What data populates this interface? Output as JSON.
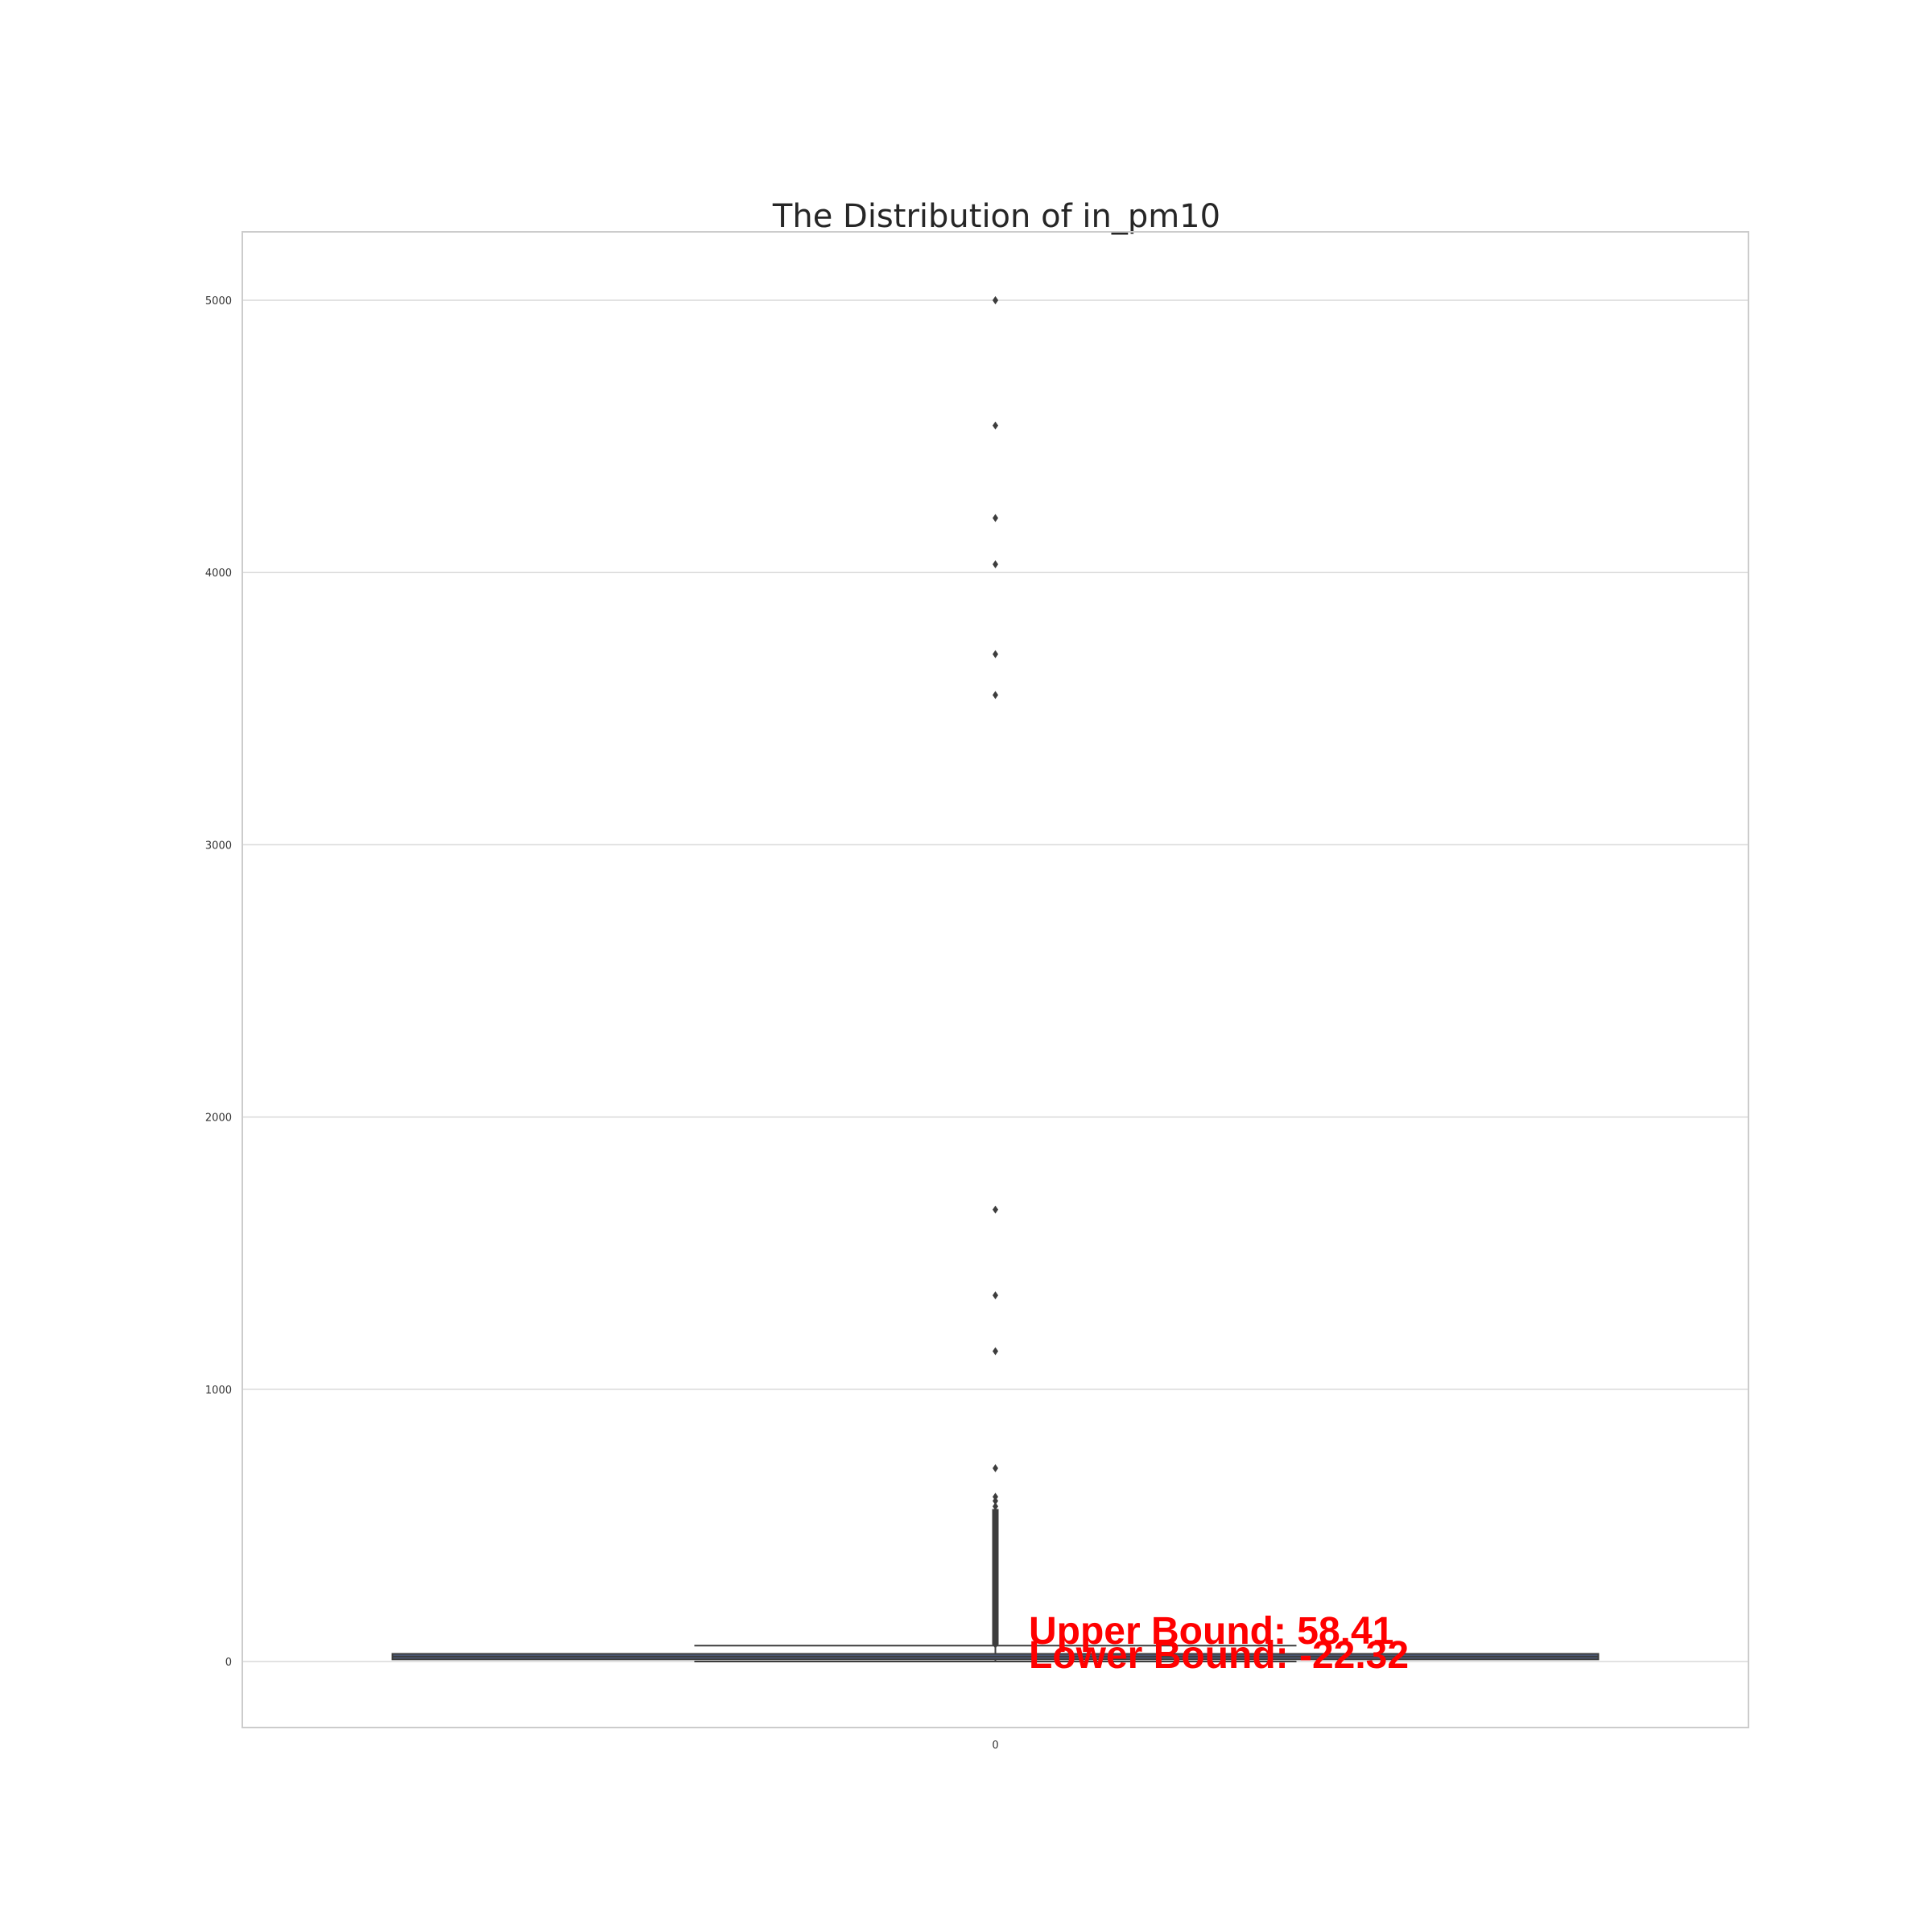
{
  "chart_data": {
    "type": "box",
    "title": "The Distribution of in_pm10",
    "xlabel": "",
    "ylabel": "",
    "categories": [
      "0"
    ],
    "ylim": [
      -250,
      5250
    ],
    "yticks": [
      0,
      1000,
      2000,
      3000,
      4000,
      5000
    ],
    "grid": "horizontal",
    "box": {
      "q1": 7.9,
      "median": 18,
      "q3": 28.2,
      "whisker_low": 0,
      "whisker_high": 58.41
    },
    "outliers": [
      5000,
      5000,
      4540,
      4200,
      4030,
      3700,
      3550,
      1660,
      1345,
      1140,
      710,
      605,
      590,
      570,
      550,
      520,
      500,
      480,
      460,
      440,
      420,
      400,
      380,
      360,
      340,
      320,
      300,
      280,
      260,
      240,
      220,
      200,
      185,
      170,
      155,
      140,
      125,
      110,
      95,
      80,
      70,
      62
    ],
    "annotations": [
      {
        "label": "Upper Bound: 58.41",
        "value": 58.41
      },
      {
        "label": "Lower Bound: -22.32",
        "value": -22.32
      }
    ],
    "colors": {
      "box_fill": "#4c5a7a",
      "box_edge": "#3d3d3d",
      "outlier": "#3d3d3d",
      "grid": "#d9d9d9",
      "frame": "#cccccc",
      "annotation": "#ff0000"
    }
  }
}
